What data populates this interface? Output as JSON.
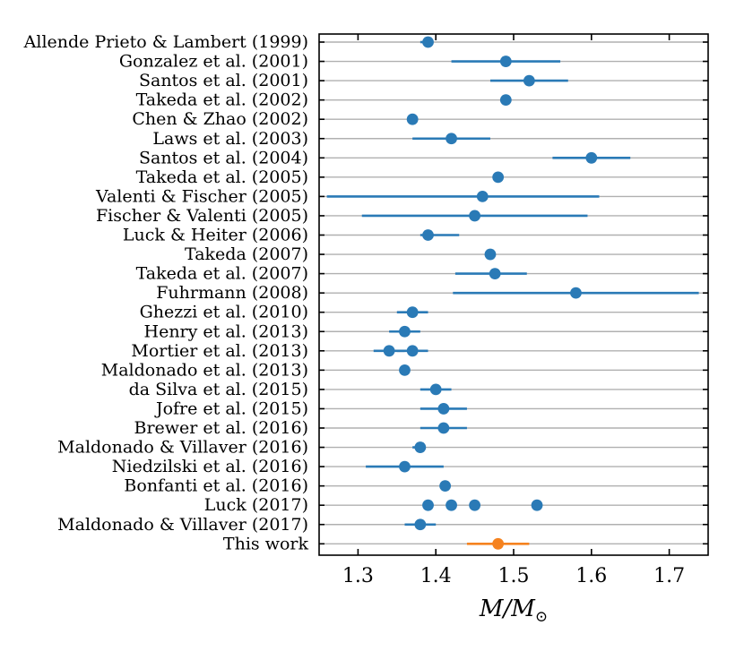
{
  "chart_data": {
    "type": "scatter",
    "xlabel": "M/M",
    "xlabel_sub": "⊙",
    "xlim": [
      1.25,
      1.75
    ],
    "xticks": [
      1.3,
      1.4,
      1.5,
      1.6,
      1.7
    ],
    "xtick_labels": [
      "1.3",
      "1.4",
      "1.5",
      "1.6",
      "1.7"
    ],
    "grid": "horizontal",
    "colors": {
      "literature": "#2a7ab6",
      "this_work": "#f5821f"
    },
    "rows": [
      {
        "label": "Allende Prieto & Lambert (1999)",
        "points": [
          {
            "value": 1.39,
            "lo": 1.38,
            "hi": 1.39
          }
        ]
      },
      {
        "label": "Gonzalez et al. (2001)",
        "points": [
          {
            "value": 1.49,
            "lo": 1.42,
            "hi": 1.56
          }
        ]
      },
      {
        "label": "Santos et al. (2001)",
        "points": [
          {
            "value": 1.52,
            "lo": 1.47,
            "hi": 1.57
          }
        ]
      },
      {
        "label": "Takeda et al. (2002)",
        "points": [
          {
            "value": 1.49
          }
        ]
      },
      {
        "label": "Chen & Zhao (2002)",
        "points": [
          {
            "value": 1.37
          }
        ]
      },
      {
        "label": "Laws et al. (2003)",
        "points": [
          {
            "value": 1.42,
            "lo": 1.37,
            "hi": 1.47
          }
        ]
      },
      {
        "label": "Santos et al. (2004)",
        "points": [
          {
            "value": 1.6,
            "lo": 1.55,
            "hi": 1.65
          }
        ]
      },
      {
        "label": "Takeda et al. (2005)",
        "points": [
          {
            "value": 1.48
          }
        ]
      },
      {
        "label": "Valenti & Fischer (2005)",
        "points": [
          {
            "value": 1.46,
            "lo": 1.26,
            "hi": 1.61
          }
        ]
      },
      {
        "label": "Fischer & Valenti (2005)",
        "points": [
          {
            "value": 1.45,
            "lo": 1.305,
            "hi": 1.595
          }
        ]
      },
      {
        "label": "Luck & Heiter (2006)",
        "points": [
          {
            "value": 1.39,
            "lo": 1.38,
            "hi": 1.43
          }
        ]
      },
      {
        "label": "Takeda (2007)",
        "points": [
          {
            "value": 1.47
          }
        ]
      },
      {
        "label": "Takeda et al. (2007)",
        "points": [
          {
            "value": 1.476,
            "lo": 1.425,
            "hi": 1.517
          }
        ]
      },
      {
        "label": "Fuhrmann (2008)",
        "points": [
          {
            "value": 1.58,
            "lo": 1.422,
            "hi": 1.738
          }
        ]
      },
      {
        "label": "Ghezzi et al. (2010)",
        "points": [
          {
            "value": 1.37,
            "lo": 1.35,
            "hi": 1.39
          }
        ]
      },
      {
        "label": "Henry et al. (2013)",
        "points": [
          {
            "value": 1.36,
            "lo": 1.34,
            "hi": 1.38
          }
        ]
      },
      {
        "label": "Mortier et al. (2013)",
        "points": [
          {
            "value": 1.34,
            "lo": 1.32,
            "hi": 1.36
          },
          {
            "value": 1.37,
            "lo": 1.35,
            "hi": 1.39
          }
        ]
      },
      {
        "label": "Maldonado et al. (2013)",
        "points": [
          {
            "value": 1.36,
            "lo": 1.355,
            "hi": 1.365
          }
        ]
      },
      {
        "label": "da Silva et al. (2015)",
        "points": [
          {
            "value": 1.4,
            "lo": 1.38,
            "hi": 1.42
          }
        ]
      },
      {
        "label": "Jofre et al. (2015)",
        "points": [
          {
            "value": 1.41,
            "lo": 1.38,
            "hi": 1.44
          }
        ]
      },
      {
        "label": "Brewer et al. (2016)",
        "points": [
          {
            "value": 1.41,
            "lo": 1.38,
            "hi": 1.44
          }
        ]
      },
      {
        "label": "Maldonado & Villaver (2016)",
        "points": [
          {
            "value": 1.38,
            "lo": 1.37,
            "hi": 1.385
          }
        ]
      },
      {
        "label": "Niedzilski et al. (2016)",
        "points": [
          {
            "value": 1.36,
            "lo": 1.31,
            "hi": 1.41
          }
        ]
      },
      {
        "label": "Bonfanti et al. (2016)",
        "points": [
          {
            "value": 1.412,
            "lo": 1.405,
            "hi": 1.418
          }
        ]
      },
      {
        "label": "Luck (2017)",
        "points": [
          {
            "value": 1.39
          },
          {
            "value": 1.42
          },
          {
            "value": 1.45
          },
          {
            "value": 1.53
          }
        ]
      },
      {
        "label": "Maldonado & Villaver (2017)",
        "points": [
          {
            "value": 1.38,
            "lo": 1.36,
            "hi": 1.4
          }
        ]
      },
      {
        "label": "This work",
        "points": [
          {
            "value": 1.48,
            "lo": 1.44,
            "hi": 1.52
          }
        ],
        "highlight": true
      }
    ]
  }
}
